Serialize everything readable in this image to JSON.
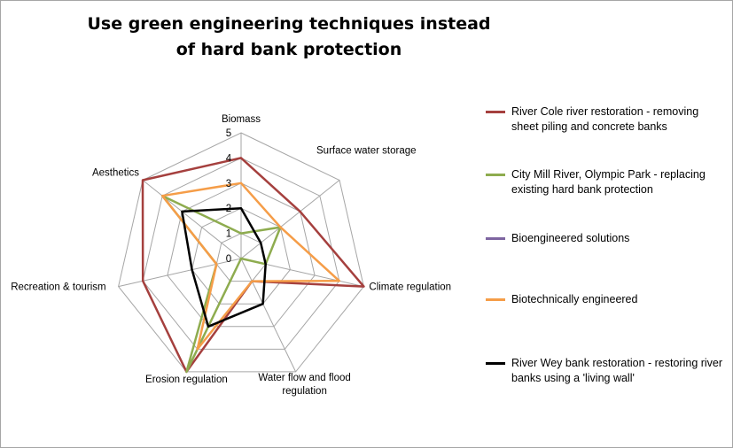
{
  "chart_data": {
    "type": "radar",
    "title": "Use green engineering techniques instead of hard bank protection",
    "axes": [
      "Biomass",
      "Surface water storage",
      "Climate regulation",
      "Water flow and flood regulation",
      "Erosion regulation",
      "Recreation & tourism",
      "Aesthetics"
    ],
    "axis_label_lines": [
      [
        "Biomass"
      ],
      [
        "Surface water storage"
      ],
      [
        "Climate regulation"
      ],
      [
        "Water flow and flood",
        "regulation"
      ],
      [
        "Erosion regulation"
      ],
      [
        "Recreation & tourism"
      ],
      [
        "Aesthetics"
      ]
    ],
    "rmin": 0,
    "rmax": 5,
    "ticks": [
      "0",
      "1",
      "2",
      "3",
      "4",
      "5"
    ],
    "grid": true,
    "legend_position": "right",
    "series": [
      {
        "name": "River Cole river restoration - removing sheet piling and concrete banks",
        "color": "#A5403E",
        "values": [
          4,
          3,
          5,
          1,
          5,
          4,
          5
        ]
      },
      {
        "name": "City Mill River, Olympic Park - replacing existing hard bank protection",
        "color": "#8EAC4F",
        "values": [
          1,
          2,
          1,
          0,
          5,
          1,
          4
        ]
      },
      {
        "name": "Bioengineered solutions",
        "color": "#7E65A1",
        "values": [
          0,
          0,
          0,
          0,
          0,
          0,
          0
        ]
      },
      {
        "name": "Biotechnically engineered",
        "color": "#F59D48",
        "values": [
          3,
          2,
          4,
          1,
          4,
          1,
          4
        ]
      },
      {
        "name": "River Wey bank restoration - restoring river banks using a 'living wall'",
        "color": "#000000",
        "values": [
          2,
          1,
          1,
          2,
          3,
          2,
          3
        ]
      }
    ]
  }
}
